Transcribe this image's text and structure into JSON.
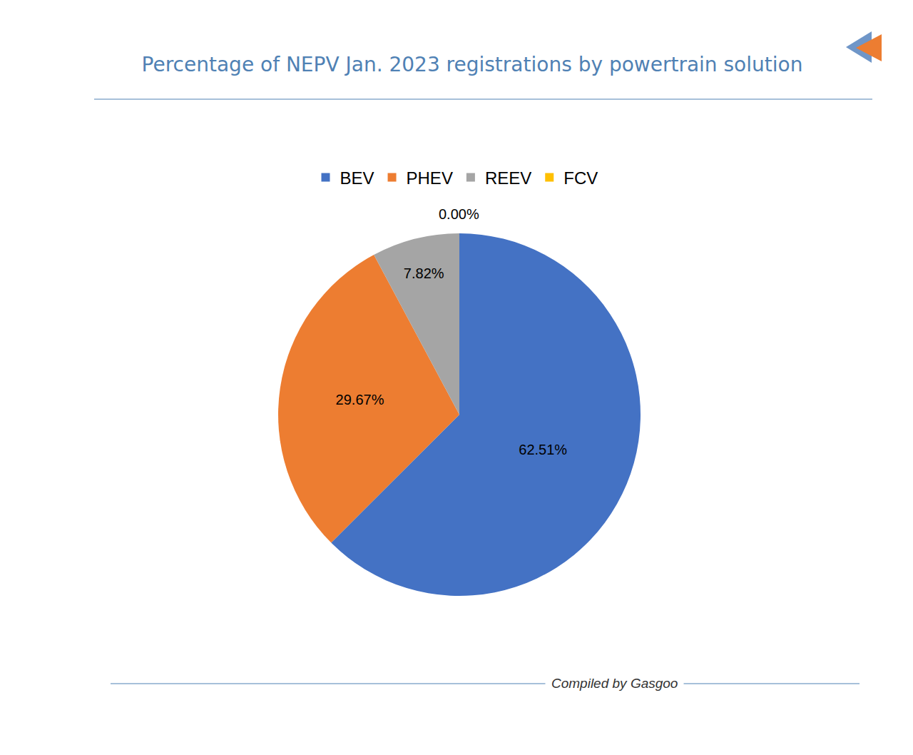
{
  "chart_data": {
    "type": "pie",
    "title": "Percentage of NEPV Jan. 2023 registrations by powertrain solution",
    "source": "Compiled by Gasgoo",
    "categories": [
      "BEV",
      "PHEV",
      "REEV",
      "FCV"
    ],
    "values": [
      62.51,
      29.67,
      7.82,
      0.0
    ],
    "value_labels": [
      "62.51%",
      "29.67%",
      "7.82%",
      "0.00%"
    ],
    "colors": [
      "#4472c4",
      "#ed7d31",
      "#a5a5a5",
      "#ffc000"
    ],
    "data_labels": true,
    "legend": "top"
  }
}
